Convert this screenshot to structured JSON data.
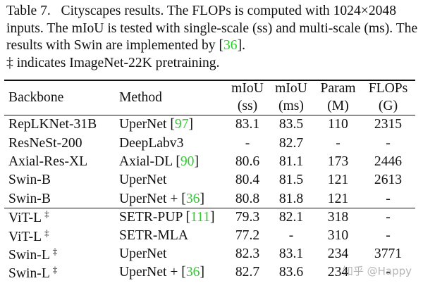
{
  "caption": {
    "label": "Table 7.",
    "text_1": "Cityscapes results. The FLOPs is computed with 1024×2048 inputs. The mIoU is tested with single-scale (ss) and multi-scale (ms). The results with Swin are implemented by [",
    "cite": "36",
    "text_2": "].",
    "text_3": "‡ indicates ImageNet-22K pretraining."
  },
  "headers": {
    "backbone": "Backbone",
    "method": "Method",
    "ss_top": "mIoU",
    "ss_bottom": "(ss)",
    "ms_top": "mIoU",
    "ms_bottom": "(ms)",
    "param_top": "Param",
    "param_bottom": "(M)",
    "flops_top": "FLOPs",
    "flops_bottom": "(G)"
  },
  "rows": [
    {
      "backbone": "RepLKNet-31B",
      "dagger": "",
      "method": "UperNet [",
      "cite": "97",
      "method_end": "]",
      "ss": "83.1",
      "ms": "83.5",
      "param": "110",
      "flops": "2315"
    },
    {
      "backbone": "ResNeSt-200",
      "dagger": "",
      "method": "DeepLabv3",
      "cite": "",
      "method_end": "",
      "ss": "-",
      "ms": "82.7",
      "param": "-",
      "flops": "-"
    },
    {
      "backbone": "Axial-Res-XL",
      "dagger": "",
      "method": "Axial-DL [",
      "cite": "90",
      "method_end": "]",
      "ss": "80.6",
      "ms": "81.1",
      "param": "173",
      "flops": "2446"
    },
    {
      "backbone": "Swin-B",
      "dagger": "",
      "method": "UperNet",
      "cite": "",
      "method_end": "",
      "ss": "80.4",
      "ms": "81.5",
      "param": "121",
      "flops": "2613"
    },
    {
      "backbone": "Swin-B",
      "dagger": "",
      "method": "UperNet + [",
      "cite": "36",
      "method_end": "]",
      "ss": "80.8",
      "ms": "81.8",
      "param": "121",
      "flops": "-"
    },
    {
      "backbone": "ViT-L",
      "dagger": "‡",
      "method": "SETR-PUP [",
      "cite": "111",
      "method_end": "]",
      "ss": "79.3",
      "ms": "82.1",
      "param": "318",
      "flops": "-"
    },
    {
      "backbone": "ViT-L",
      "dagger": "‡",
      "method": "SETR-MLA",
      "cite": "",
      "method_end": "",
      "ss": "77.2",
      "ms": "-",
      "param": "310",
      "flops": "-"
    },
    {
      "backbone": "Swin-L",
      "dagger": "‡",
      "method": "UperNet",
      "cite": "",
      "method_end": "",
      "ss": "82.3",
      "ms": "83.1",
      "param": "234",
      "flops": "3771"
    },
    {
      "backbone": "Swin-L",
      "dagger": "‡",
      "method": "UperNet + [",
      "cite": "36",
      "method_end": "]",
      "ss": "82.7",
      "ms": "83.6",
      "param": "234",
      "flops": "-"
    }
  ],
  "watermark": "知乎 @Happy",
  "colors": {
    "citation": "#2dcd2d",
    "text": "#111111"
  }
}
